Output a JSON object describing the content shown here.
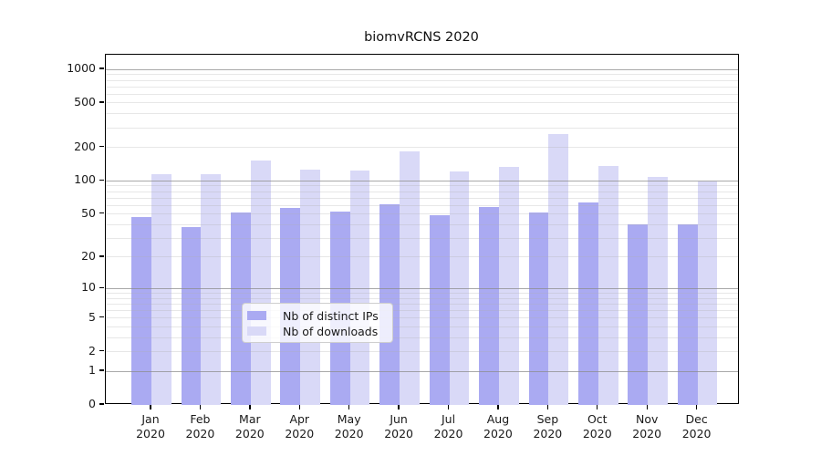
{
  "title": "biomvRCNS 2020",
  "chart_data": {
    "type": "bar",
    "title": "biomvRCNS 2020",
    "categories": [
      "Jan",
      "Feb",
      "Mar",
      "Apr",
      "May",
      "Jun",
      "Jul",
      "Aug",
      "Sep",
      "Oct",
      "Nov",
      "Dec"
    ],
    "x_year_label": "2020",
    "series": [
      {
        "name": "Nb of distinct IPs",
        "color": "#aaaaf2",
        "values": [
          47,
          38,
          52,
          57,
          53,
          61,
          49,
          58,
          52,
          64,
          40,
          40
        ]
      },
      {
        "name": "Nb of downloads",
        "color": "#d9d9f7",
        "values": [
          115,
          115,
          153,
          126,
          124,
          183,
          122,
          134,
          265,
          136,
          108,
          99
        ]
      }
    ],
    "y_ticks": [
      0,
      1,
      2,
      5,
      10,
      20,
      50,
      100,
      200,
      500,
      1000
    ],
    "y_scale": "log10(1+y)",
    "ylim": [
      0,
      1355
    ],
    "grid": "on",
    "legend_position": "lower center"
  },
  "colors": {
    "bar_distinct_ips": "#aaaaf2",
    "bar_downloads": "#d9d9f7",
    "grid_major": "#8c8c8c",
    "grid_minor": "#b0b0b0",
    "axis": "#000000",
    "background": "#ffffff"
  }
}
